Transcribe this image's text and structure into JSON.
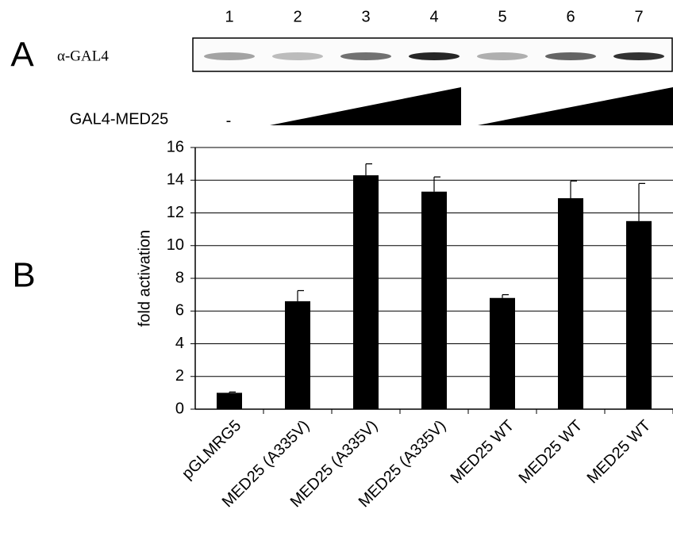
{
  "panel_a": {
    "label": "A",
    "lanes": [
      "1",
      "2",
      "3",
      "4",
      "5",
      "6",
      "7"
    ],
    "antibody": "α-GAL4",
    "construct_label": "GAL4-MED25",
    "control_mark": "-"
  },
  "chart_data": {
    "type": "bar",
    "panel_label": "B",
    "y_label": "fold activation",
    "categories": [
      "pGLMRG5",
      "MED25 (A335V)",
      "MED25 (A335V)",
      "MED25 (A335V)",
      "MED25 WT",
      "MED25 WT",
      "MED25 WT"
    ],
    "values": [
      1.0,
      6.6,
      14.3,
      13.3,
      6.8,
      12.9,
      11.5
    ],
    "errors": [
      0.05,
      0.65,
      0.7,
      0.9,
      0.2,
      1.05,
      2.3
    ],
    "color": "#000000",
    "ylim": [
      0,
      16
    ],
    "yticks": [
      0,
      2,
      4,
      6,
      8,
      10,
      12,
      14,
      16
    ],
    "grid": true
  }
}
